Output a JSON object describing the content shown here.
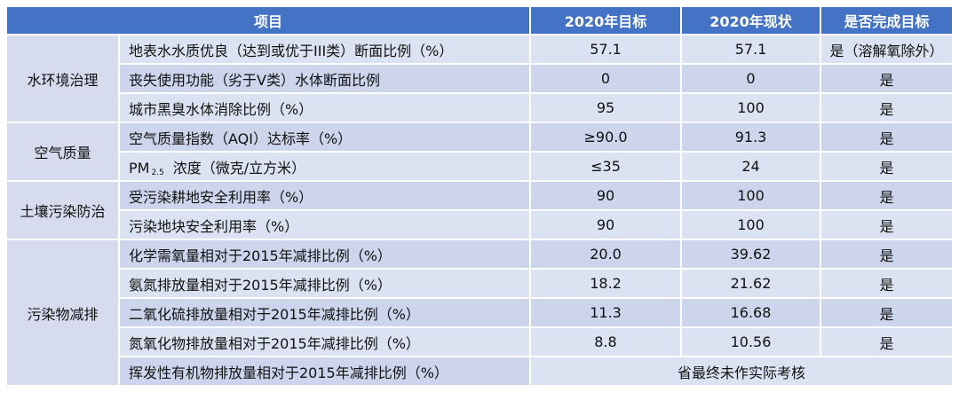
{
  "headers": [
    "项目",
    "2020年目标",
    "2020年现状",
    "是否完成目标"
  ],
  "categories": [
    "水环境治理",
    "空气质量",
    "土壤污染防治",
    "污染物减排"
  ],
  "rows": [
    {
      "item": "地表水水质优良（达到或优于III类）断面比例（%）",
      "target": "57.1",
      "status": "57.1",
      "done": "是（溶解氧除外）"
    },
    {
      "item": "丧失使用功能（劣于V类）水体断面比例",
      "target": "0",
      "status": "0",
      "done": "是"
    },
    {
      "item": "城市黑臭水体消除比例（%）",
      "target": "95",
      "status": "100",
      "done": "是"
    },
    {
      "item": "空气质量指数（AQI）达标率（%）",
      "target": "≥90.0",
      "status": "91.3",
      "done": "是"
    },
    {
      "item_prefix": "PM",
      "item_sub": "2.5",
      "item_suffix": "浓度（微克/立方米）",
      "target": "≤35",
      "status": "24",
      "done": "是"
    },
    {
      "item": "受污染耕地安全利用率（%）",
      "target": "90",
      "status": "100",
      "done": "是"
    },
    {
      "item": "污染地块安全利用率（%）",
      "target": "90",
      "status": "100",
      "done": "是"
    },
    {
      "item": "化学需氧量相对于2015年减排比例（%）",
      "target": "20.0",
      "status": "39.62",
      "done": "是"
    },
    {
      "item": "氨氮排放量相对于2015年减排比例（%）",
      "target": "18.2",
      "status": "21.62",
      "done": "是"
    },
    {
      "item": "二氧化硫排放量相对于2015年减排比例（%）",
      "target": "11.3",
      "status": "16.68",
      "done": "是"
    },
    {
      "item": "氮氧化物排放量相对于2015年减排比例（%）",
      "target": "8.8",
      "status": "10.56",
      "done": "是"
    },
    {
      "item": "挥发性有机物排放量相对于2015年减排比例（%）",
      "merged_note": "省最终未作实际考核"
    }
  ]
}
